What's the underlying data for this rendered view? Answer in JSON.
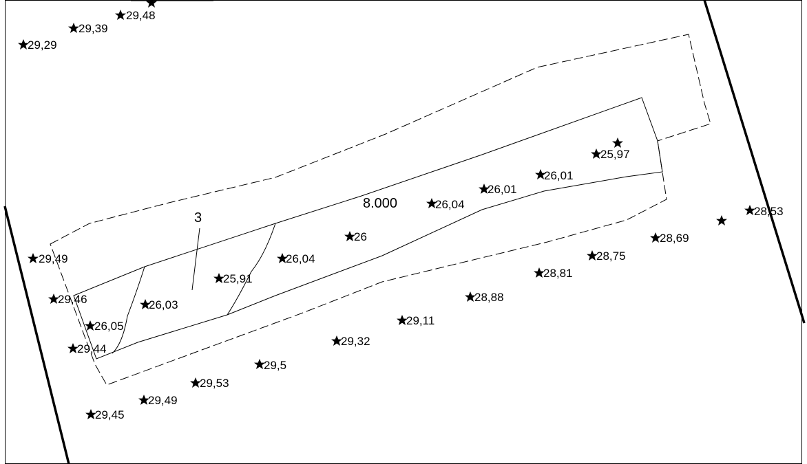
{
  "drawing": {
    "labels": {
      "area_value": "8.000",
      "parcel_number": "3"
    },
    "elevations": [
      {
        "id": "p1",
        "value": "29,48"
      },
      {
        "id": "p2",
        "value": "29,39"
      },
      {
        "id": "p3",
        "value": "29,29"
      },
      {
        "id": "p4",
        "value": "25,97"
      },
      {
        "id": "p5",
        "value": "26,01"
      },
      {
        "id": "p6",
        "value": "26,01"
      },
      {
        "id": "p7",
        "value": "26,04"
      },
      {
        "id": "p8",
        "value": "26"
      },
      {
        "id": "p9",
        "value": "26,04"
      },
      {
        "id": "p10",
        "value": "25,91"
      },
      {
        "id": "p11",
        "value": "26,03"
      },
      {
        "id": "p12",
        "value": "26,05"
      },
      {
        "id": "p13",
        "value": "29,49"
      },
      {
        "id": "p14",
        "value": "29,46"
      },
      {
        "id": "p15",
        "value": "29,44"
      },
      {
        "id": "p16",
        "value": "28,53"
      },
      {
        "id": "p17",
        "value": ""
      },
      {
        "id": "p18",
        "value": "28,69"
      },
      {
        "id": "p19",
        "value": "28,75"
      },
      {
        "id": "p20",
        "value": "28,81"
      },
      {
        "id": "p21",
        "value": "28,88"
      },
      {
        "id": "p22",
        "value": "29,11"
      },
      {
        "id": "p23",
        "value": "29,32"
      },
      {
        "id": "p24",
        "value": "29,5"
      },
      {
        "id": "p25",
        "value": "29,53"
      },
      {
        "id": "p26",
        "value": "29,49"
      },
      {
        "id": "p27",
        "value": "29,45"
      },
      {
        "id": "p28",
        "value": ""
      }
    ]
  }
}
